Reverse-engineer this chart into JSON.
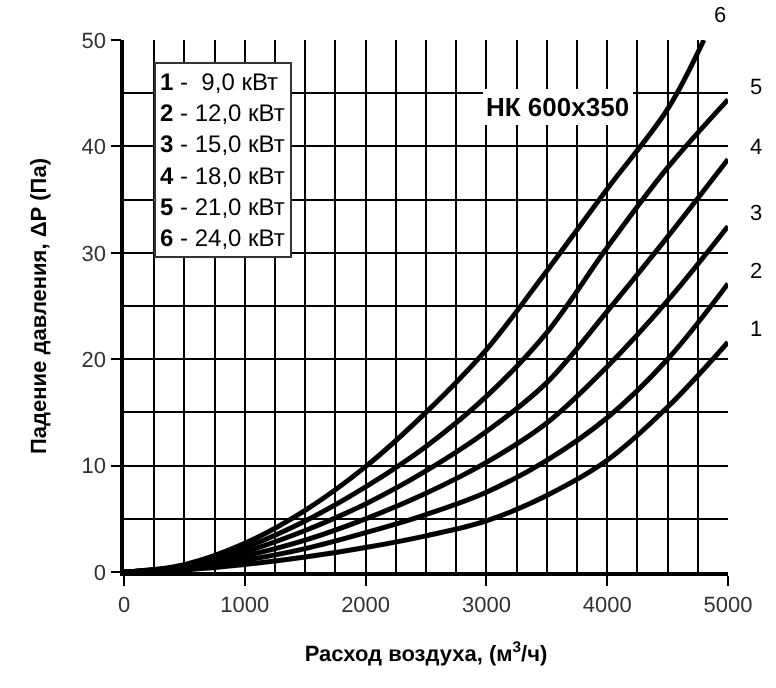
{
  "chart_data": {
    "type": "line",
    "xlabel": "Расход воздуха, (м$^{3}$/ч)",
    "ylabel": "Падение давления, ΔР (Па)",
    "x": [
      0,
      500,
      1000,
      1500,
      2000,
      2500,
      3000,
      3500,
      4000,
      4500,
      5000
    ],
    "series": [
      {
        "name": "1",
        "color": "#000000",
        "values": [
          0,
          0.2,
          0.7,
          1.4,
          2.3,
          3.4,
          4.8,
          7.2,
          10.5,
          15.5,
          21.6
        ]
      },
      {
        "name": "2",
        "color": "#000000",
        "values": [
          0,
          0.3,
          1.1,
          2.2,
          3.7,
          5.4,
          7.5,
          10.5,
          14.5,
          20,
          27.1
        ]
      },
      {
        "name": "3",
        "color": "#000000",
        "values": [
          0,
          0.4,
          1.5,
          3,
          5,
          7.4,
          10.3,
          14,
          19.3,
          25.5,
          32.5
        ]
      },
      {
        "name": "4",
        "color": "#000000",
        "values": [
          0,
          0.5,
          1.9,
          3.9,
          6.4,
          9.5,
          13.2,
          17.8,
          24.5,
          31.5,
          38.8
        ]
      },
      {
        "name": "5",
        "color": "#000000",
        "values": [
          0,
          0.6,
          2.3,
          4.8,
          8,
          11.8,
          16.5,
          22.5,
          30.5,
          38,
          44.4
        ]
      },
      {
        "name": "6",
        "color": "#000000",
        "x": [
          0,
          500,
          1000,
          1500,
          2000,
          2500,
          3000,
          3500,
          4000,
          4500,
          4800
        ],
        "values": [
          0,
          0.7,
          2.7,
          5.8,
          9.9,
          15,
          20.9,
          28.3,
          36,
          43.5,
          50
        ]
      }
    ],
    "annotations": [
      "НК 600x350",
      "1 -  9,0 кВт",
      "2 - 12,0 кВт",
      "3 - 15,0 кВт",
      "4 - 18,0 кВт",
      "5 - 21,0 кВт",
      "6 - 24,0 кВт"
    ],
    "xlim": [
      0,
      5000
    ],
    "ylim": [
      0,
      50
    ],
    "xticks": [
      0,
      1000,
      2000,
      3000,
      4000,
      5000
    ],
    "yticks": [
      0,
      10,
      20,
      30,
      40,
      50
    ],
    "grid": true,
    "legend": false,
    "marker": "none",
    "line_style": "solid"
  }
}
